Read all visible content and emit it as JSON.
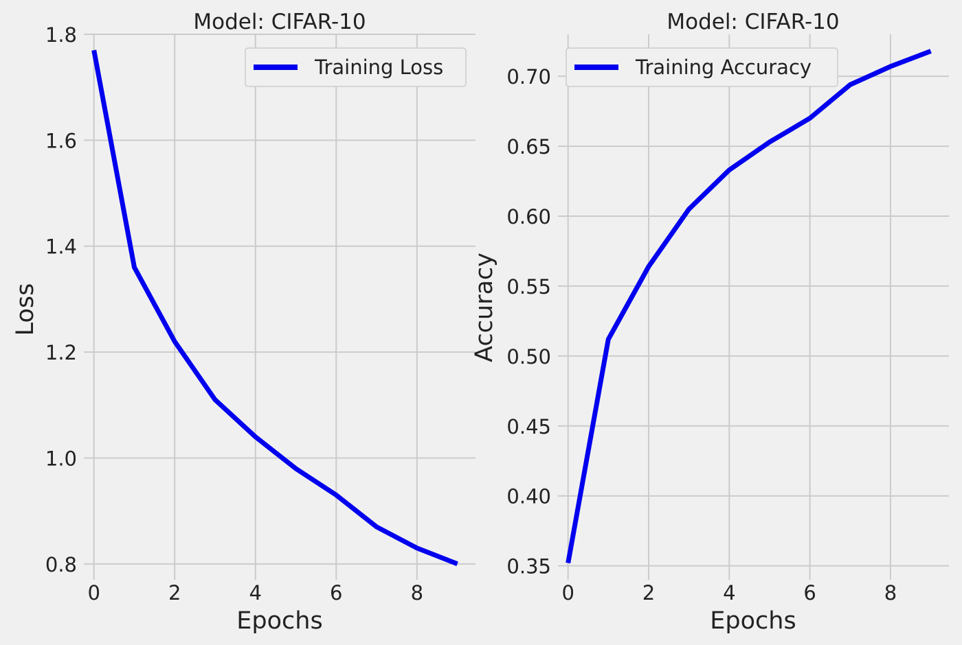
{
  "figure": {
    "background": "#f0f0f0",
    "grid_color": "#cbcbcb",
    "line_color": "#0000ee"
  },
  "chart_data": [
    {
      "type": "line",
      "title": "Model: CIFAR-10",
      "xlabel": "Epochs",
      "ylabel": "Loss",
      "x": [
        0,
        1,
        2,
        3,
        4,
        5,
        6,
        7,
        8,
        9
      ],
      "series": [
        {
          "name": "Training Loss",
          "values": [
            1.77,
            1.36,
            1.22,
            1.11,
            1.04,
            0.98,
            0.93,
            0.87,
            0.83,
            0.8
          ]
        }
      ],
      "xticks": [
        0,
        2,
        4,
        6,
        8
      ],
      "xtick_labels": [
        "0",
        "2",
        "4",
        "6",
        "8"
      ],
      "yticks": [
        0.8,
        1.0,
        1.2,
        1.4,
        1.6,
        1.8
      ],
      "ytick_labels": [
        "0.8",
        "1.0",
        "1.2",
        "1.4",
        "1.6",
        "1.8"
      ],
      "xlim": [
        -0.25,
        9.45
      ],
      "ylim": [
        0.77,
        1.8
      ],
      "grid": true,
      "legend_position": "upper right"
    },
    {
      "type": "line",
      "title": "Model: CIFAR-10",
      "xlabel": "Epochs",
      "ylabel": "Accuracy",
      "x": [
        0,
        1,
        2,
        3,
        4,
        5,
        6,
        7,
        8,
        9
      ],
      "series": [
        {
          "name": "Training Accuracy",
          "values": [
            0.352,
            0.512,
            0.564,
            0.605,
            0.633,
            0.653,
            0.67,
            0.694,
            0.707,
            0.718
          ]
        }
      ],
      "xticks": [
        0,
        2,
        4,
        6,
        8
      ],
      "xtick_labels": [
        "0",
        "2",
        "4",
        "6",
        "8"
      ],
      "yticks": [
        0.35,
        0.4,
        0.45,
        0.5,
        0.55,
        0.6,
        0.65,
        0.7
      ],
      "ytick_labels": [
        "0.35",
        "0.40",
        "0.45",
        "0.50",
        "0.55",
        "0.60",
        "0.65",
        "0.70"
      ],
      "xlim": [
        -0.25,
        9.45
      ],
      "ylim": [
        0.34,
        0.73
      ],
      "grid": true,
      "legend_position": "upper left"
    }
  ]
}
